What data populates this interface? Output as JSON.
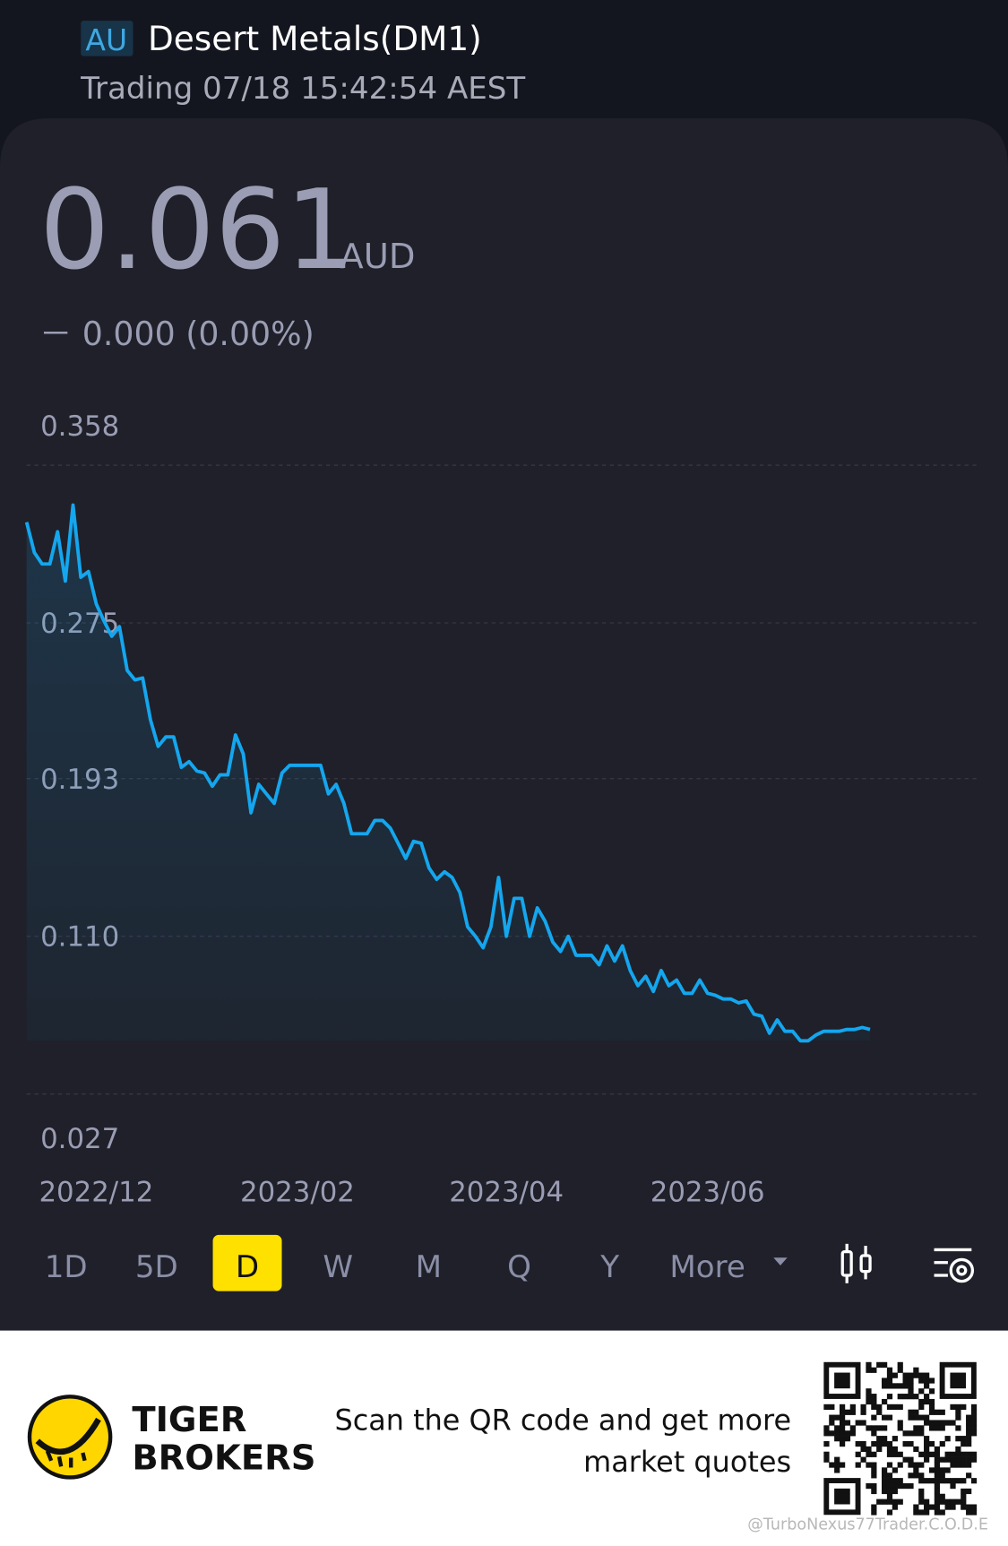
{
  "header": {
    "market": "AU",
    "name": "Desert Metals(DM1)",
    "status": "Trading 07/18 15:42:54 AEST"
  },
  "quote": {
    "price": "0.061",
    "currency": "AUD",
    "change": "－ 0.000 (0.00%)"
  },
  "chart_data": {
    "type": "line",
    "color": "#14a6ee",
    "grid": true,
    "categories": [
      null,
      null,
      null,
      null,
      null,
      null,
      null,
      null,
      null,
      "2022/12",
      null,
      null,
      null,
      null,
      null,
      null,
      null,
      null,
      null,
      null,
      null,
      null,
      null,
      null,
      null,
      null,
      null,
      null,
      null,
      null,
      null,
      null,
      null,
      null,
      null,
      "2023/02",
      null,
      null,
      null,
      null,
      null,
      null,
      null,
      null,
      null,
      null,
      null,
      null,
      null,
      null,
      null,
      null,
      null,
      null,
      null,
      null,
      null,
      null,
      null,
      null,
      null,
      null,
      "2023/04",
      null,
      null,
      null,
      null,
      null,
      null,
      null,
      null,
      null,
      null,
      null,
      null,
      null,
      null,
      null,
      null,
      null,
      null,
      null,
      null,
      null,
      null,
      null,
      null,
      null,
      "2023/06",
      null,
      null,
      null,
      null,
      null,
      null,
      null,
      null,
      null,
      null,
      null,
      null,
      null,
      null,
      null,
      null,
      null,
      null,
      null,
      null,
      null
    ],
    "values": [
      0.328,
      0.312,
      0.306,
      0.306,
      0.323,
      0.297,
      0.337,
      0.299,
      0.302,
      0.285,
      0.276,
      0.268,
      0.273,
      0.25,
      0.245,
      0.246,
      0.224,
      0.21,
      0.215,
      0.215,
      0.199,
      0.202,
      0.197,
      0.196,
      0.189,
      0.195,
      0.195,
      0.216,
      0.206,
      0.175,
      0.19,
      0.185,
      0.18,
      0.196,
      0.2,
      0.2,
      0.2,
      0.2,
      0.2,
      0.185,
      0.19,
      0.18,
      0.164,
      0.164,
      0.164,
      0.171,
      0.171,
      0.167,
      0.159,
      0.151,
      0.16,
      0.159,
      0.146,
      0.14,
      0.144,
      0.141,
      0.133,
      0.115,
      0.11,
      0.104,
      0.115,
      0.141,
      0.11,
      0.13,
      0.13,
      0.11,
      0.125,
      0.118,
      0.107,
      0.102,
      0.11,
      0.1,
      0.1,
      0.1,
      0.095,
      0.105,
      0.097,
      0.105,
      0.092,
      0.084,
      0.089,
      0.081,
      0.092,
      0.084,
      0.087,
      0.08,
      0.08,
      0.087,
      0.08,
      0.079,
      0.077,
      0.077,
      0.075,
      0.076,
      0.069,
      0.068,
      0.059,
      0.066,
      0.06,
      0.06,
      0.055,
      0.055,
      0.058,
      0.06,
      0.06,
      0.06,
      0.061,
      0.061,
      0.062,
      0.061
    ],
    "ylim": [
      0.027,
      0.358
    ],
    "yticks": [
      0.358,
      0.275,
      0.193,
      {
        "value": 0.11,
        "label": "0.110"
      },
      0.027
    ]
  },
  "timeframes": {
    "items": [
      "1D",
      "5D",
      "D",
      "W",
      "M",
      "Q",
      "Y",
      "More"
    ],
    "active": 2
  },
  "footer": {
    "brand_line1": "TIGER",
    "brand_line2": "BROKERS",
    "text_line1": "Scan the QR code and get more",
    "text_line2": "market quotes",
    "watermark": "@TurboNexus77Trader.C.O.D.E"
  }
}
